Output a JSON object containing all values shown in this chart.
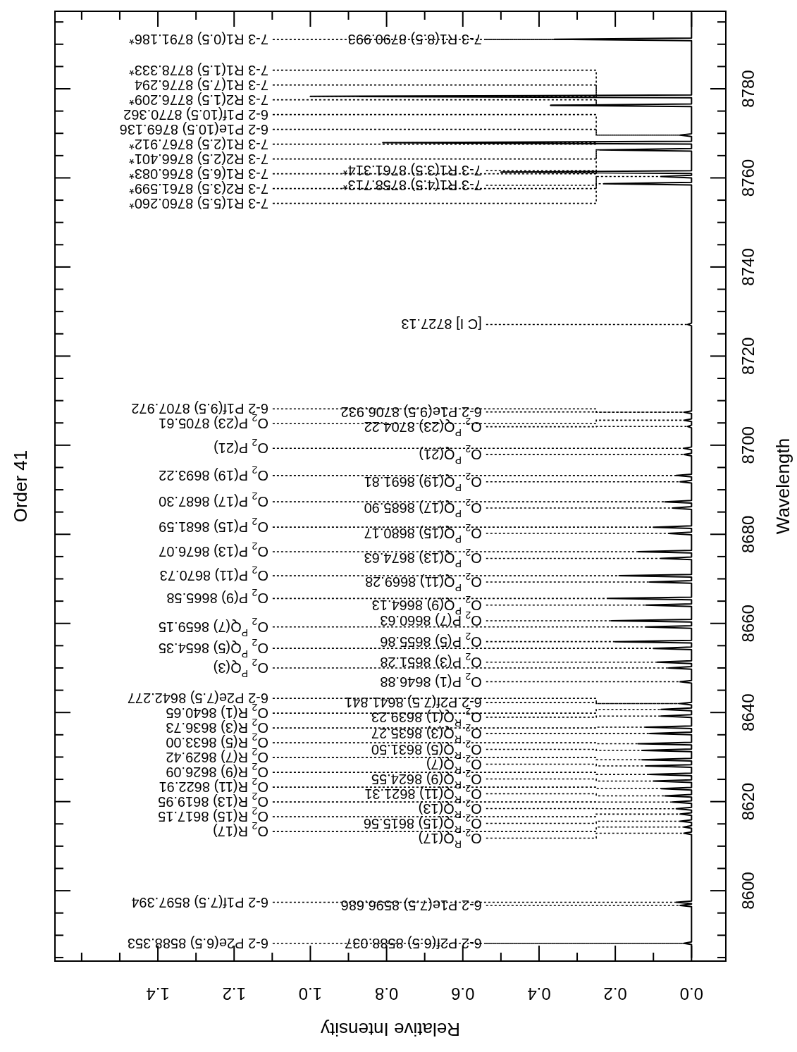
{
  "chart_data": {
    "type": "line",
    "title": "Order 41",
    "xlabel": "Relative Intensity",
    "ylabel": "Wavelength",
    "xlim": [
      1.67,
      -0.09
    ],
    "ylim": [
      8584.2,
      8797.4
    ],
    "xticks": [
      {
        "value": 0,
        "label": "0.0"
      },
      {
        "value": 0.1,
        "label": null
      },
      {
        "value": 0.2,
        "label": "0.2"
      },
      {
        "value": 0.3,
        "label": null
      },
      {
        "value": 0.4,
        "label": "0.4"
      },
      {
        "value": 0.5,
        "label": null
      },
      {
        "value": 0.6,
        "label": "0.6"
      },
      {
        "value": 0.7,
        "label": null
      },
      {
        "value": 0.8,
        "label": "0.8"
      },
      {
        "value": 0.9,
        "label": null
      },
      {
        "value": 1.0,
        "label": "1.0"
      },
      {
        "value": 1.1,
        "label": null
      },
      {
        "value": 1.2,
        "label": "1.2"
      },
      {
        "value": 1.3,
        "label": null
      },
      {
        "value": 1.4,
        "label": "1.4"
      },
      {
        "value": 1.5,
        "label": null
      },
      {
        "value": 1.6,
        "label": null
      }
    ],
    "yticks": [
      {
        "value": 8585,
        "label": null
      },
      {
        "value": 8590,
        "label": null
      },
      {
        "value": 8595,
        "label": null
      },
      8600,
      {
        "value": 8605,
        "label": null
      },
      {
        "value": 8610,
        "label": null
      },
      {
        "value": 8615,
        "label": null
      },
      8620,
      {
        "value": 8625,
        "label": null
      },
      {
        "value": 8630,
        "label": null
      },
      {
        "value": 8635,
        "label": null
      },
      8640,
      {
        "value": 8645,
        "label": null
      },
      {
        "value": 8650,
        "label": null
      },
      {
        "value": 8655,
        "label": null
      },
      8660,
      {
        "value": 8665,
        "label": null
      },
      {
        "value": 8670,
        "label": null
      },
      {
        "value": 8675,
        "label": null
      },
      8680,
      {
        "value": 8685,
        "label": null
      },
      {
        "value": 8690,
        "label": null
      },
      {
        "value": 8695,
        "label": null
      },
      8700,
      {
        "value": 8705,
        "label": null
      },
      {
        "value": 8710,
        "label": null
      },
      {
        "value": 8715,
        "label": null
      },
      8720,
      {
        "value": 8725,
        "label": null
      },
      {
        "value": 8730,
        "label": null
      },
      {
        "value": 8735,
        "label": null
      },
      8740,
      {
        "value": 8745,
        "label": null
      },
      {
        "value": 8750,
        "label": null
      },
      {
        "value": 8755,
        "label": null
      },
      8760,
      {
        "value": 8765,
        "label": null
      },
      {
        "value": 8770,
        "label": null
      },
      {
        "value": 8775,
        "label": null
      },
      8780,
      {
        "value": 8785,
        "label": null
      },
      {
        "value": 8790,
        "label": null
      },
      {
        "value": 8795,
        "label": null
      }
    ],
    "series": [
      {
        "color": "#000000",
        "values": [
          8585,
          8587.9,
          8588.2,
          8588.5,
          8596.4,
          8596.7,
          8597.0,
          8597.1,
          8597.4,
          8597.7,
          8612.6,
          8612.9,
          8613.2,
          8614.0,
          8614.3,
          8614.6,
          8615.3,
          8615.6,
          8615.9,
          8616.9,
          8617.2,
          8617.5,
          8618.1,
          8618.4,
          8618.7,
          8619.6,
          8619.9,
          8620.2,
          8621.0,
          8621.3,
          8621.6,
          8622.6,
          8622.9,
          8623.2,
          8624.3,
          8624.6,
          8624.9,
          8625.8,
          8626.1,
          8626.4,
          8627.7,
          8628.0,
          8628.3,
          8629.1,
          8629.4,
          8629.7,
          8631.2,
          8631.5,
          8631.8,
          8632.7,
          8633.0,
          8633.3,
          8635.0,
          8635.3,
          8635.6,
          8636.4,
          8636.7,
          8637.0,
          8638.9,
          8639.2,
          8639.5,
          8640.4,
          8640.7,
          8641.0,
          8641.7,
          8642.0,
          8642.3,
          8646.6,
          8646.9,
          8647.2,
          8649.7,
          8650.0,
          8650.3,
          8651.0,
          8651.3,
          8651.6,
          8654.1,
          8654.4,
          8654.7,
          8655.6,
          8655.9,
          8656.2,
          8658.9,
          8659.2,
          8659.5,
          8660.3,
          8660.6,
          8660.9,
          8663.8,
          8664.1,
          8664.4,
          8665.3,
          8665.6,
          8665.9,
          8669.0,
          8669.3,
          8669.6,
          8670.4,
          8670.7,
          8671.0,
          8674.3,
          8674.6,
          8674.9,
          8675.8,
          8676.1,
          8676.4,
          8679.9,
          8680.2,
          8680.5,
          8681.3,
          8681.6,
          8681.9,
          8685.6,
          8685.9,
          8686.2,
          8687.0,
          8687.3,
          8687.6,
          8691.5,
          8691.8,
          8692.1,
          8692.9,
          8693.2,
          8693.5,
          8697.6,
          8697.9,
          8698.2,
          8699.0,
          8699.3,
          8699.6,
          8703.9,
          8704.2,
          8704.5,
          8705.3,
          8705.6,
          8705.9,
          8707.1,
          8707.4,
          8707.7,
          8726.8,
          8727.1,
          8727.4,
          8758.4,
          8758.7,
          8759.0,
          8760.0,
          8760.3,
          8760.6,
          8761.0,
          8761.3,
          8761.6,
          8766.0,
          8766.3,
          8766.6,
          8767.6,
          8767.9,
          8768.2,
          8769.3,
          8769.6,
          8769.9,
          8776.0,
          8776.3,
          8776.6,
          8778.0,
          8778.3,
          8778.6,
          8790.8,
          8791.1,
          8791.4,
          8797.0
        ],
        "x": [
          0,
          0,
          0.02,
          0,
          0,
          0.03,
          0,
          0,
          0.04,
          0,
          0,
          0.02,
          0,
          0,
          0.02,
          0,
          0,
          0.03,
          0,
          0,
          0.03,
          0,
          0,
          0.04,
          0,
          0,
          0.05,
          0,
          0,
          0.07,
          0,
          0,
          0.08,
          0,
          0,
          0.1,
          0,
          0,
          0.11,
          0,
          0,
          0.12,
          0,
          0,
          0.13,
          0,
          0,
          0.13,
          0,
          0,
          0.14,
          0,
          0,
          0.11,
          0,
          0,
          0.12,
          0,
          0,
          0.08,
          0,
          0,
          0.08,
          0,
          0,
          0.03,
          0,
          0,
          0.03,
          0,
          0,
          0.06,
          0,
          0,
          0.09,
          0,
          0,
          0.1,
          0,
          0,
          0.2,
          0,
          0,
          0.12,
          0,
          0,
          0.21,
          0,
          0,
          0.12,
          0,
          0,
          0.22,
          0,
          0,
          0.11,
          0,
          0,
          0.19,
          0,
          0,
          0.08,
          0,
          0,
          0.14,
          0,
          0,
          0.06,
          0,
          0,
          0.1,
          0,
          0,
          0.05,
          0,
          0,
          0.07,
          0,
          0,
          0.03,
          0,
          0,
          0.04,
          0,
          0,
          0.02,
          0,
          0,
          0.02,
          0,
          0,
          0.01,
          0,
          0,
          0.02,
          0,
          0,
          0.02,
          0,
          0,
          0.01,
          0,
          0,
          0.23,
          0,
          0,
          0.08,
          0,
          0,
          0.5,
          0,
          0,
          0.24,
          0,
          0,
          0.81,
          0,
          0,
          0.03,
          0,
          0,
          0.37,
          0,
          0,
          1.0,
          0,
          0,
          0.36,
          0,
          0
        ]
      }
    ],
    "annotations": [
      {
        "text": "6-2 P2f(6.5) 8588.037",
        "x": 0.02,
        "y": 8588.2
      },
      {
        "text": "6-2 P2e(6.5) 8588.353",
        "x": 0.02,
        "y": 8588.2
      },
      {
        "text": "6-2 P1e(7.5) 8596.686",
        "x": 0.03,
        "y": 8596.7
      },
      {
        "text": "6-2 P1f(7.5) 8597.394",
        "x": 0.04,
        "y": 8597.4
      },
      {
        "text": "O$_{2}$ $^{R}$Q(17)",
        "x": 0.02,
        "y": 8612.9
      },
      {
        "text": "O$_{2}$ R(17)",
        "x": 0.02,
        "y": 8614.3
      },
      {
        "text": "O$_{2}$ $^{R}$Q(15) 8615.56",
        "x": 0.03,
        "y": 8615.6
      },
      {
        "text": "O$_{2}$ R(15) 8617.15",
        "x": 0.03,
        "y": 8617.2
      },
      {
        "text": "O$_{2}$ $^{R}$Q(13)",
        "x": 0.04,
        "y": 8618.4
      },
      {
        "text": "O$_{2}$ R(13) 8619.95",
        "x": 0.05,
        "y": 8619.9
      },
      {
        "text": "O$_{2}$ $^{R}$Q(11) 8621.31",
        "x": 0.07,
        "y": 8621.3
      },
      {
        "text": "O$_{2}$ R(11) 8622.91",
        "x": 0.08,
        "y": 8622.9
      },
      {
        "text": "O$_{2}$ $^{R}$Q(9) 8624.55",
        "x": 0.1,
        "y": 8624.6
      },
      {
        "text": "O$_{2}$ R(9) 8626.09",
        "x": 0.11,
        "y": 8626.1
      },
      {
        "text": "O$_{2}$ $^{R}$Q(7)",
        "x": 0.12,
        "y": 8628.0
      },
      {
        "text": "O$_{2}$ R(7) 8629.42",
        "x": 0.13,
        "y": 8629.4
      },
      {
        "text": "O$_{2}$ $^{R}$Q(5) 8631.50",
        "x": 0.13,
        "y": 8631.5
      },
      {
        "text": "O$_{2}$ R(5) 8633.00",
        "x": 0.14,
        "y": 8633.0
      },
      {
        "text": "O$_{2}$ $^{R}$Q(3) 8635.27",
        "x": 0.11,
        "y": 8635.3
      },
      {
        "text": "O$_{2}$ R(3) 8636.73",
        "x": 0.12,
        "y": 8636.7
      },
      {
        "text": "O$_{2}$ $^{R}$Q(1) 8639.23",
        "x": 0.08,
        "y": 8639.2
      },
      {
        "text": "O$_{2}$ R(1) 8640.65",
        "x": 0.08,
        "y": 8640.7
      },
      {
        "text": "6-2 P2f(7.5) 8641.841",
        "x": 0.03,
        "y": 8642.0
      },
      {
        "text": "6-2 P2e(7.5) 8642.277",
        "x": 0.03,
        "y": 8642.0
      },
      {
        "text": "O$_{2}$ P(1) 8646.88",
        "x": 0.03,
        "y": 8646.9
      },
      {
        "text": "O$_{2}$ $^{P}$Q(3)",
        "x": 0.06,
        "y": 8650.0
      },
      {
        "text": "O$_{2}$ P(3) 8651.28",
        "x": 0.09,
        "y": 8651.3
      },
      {
        "text": "O$_{2}$ $^{P}$Q(5) 8654.35",
        "x": 0.1,
        "y": 8654.4
      },
      {
        "text": "O$_{2}$ P(5) 8655.86",
        "x": 0.2,
        "y": 8655.9
      },
      {
        "text": "O$_{2}$ $^{P}$Q(7) 8659.15",
        "x": 0.12,
        "y": 8659.2
      },
      {
        "text": "O$_{2}$ P(7) 8660.63",
        "x": 0.21,
        "y": 8660.6
      },
      {
        "text": "O$_{2}$ $^{P}$Q(9) 8664.13",
        "x": 0.12,
        "y": 8664.1
      },
      {
        "text": "O$_{2}$ P(9) 8665.58",
        "x": 0.22,
        "y": 8665.6
      },
      {
        "text": "O$_{2}$ $^{P}$Q(11) 8669.28",
        "x": 0.11,
        "y": 8669.3
      },
      {
        "text": "O$_{2}$ P(11) 8670.73",
        "x": 0.19,
        "y": 8670.7
      },
      {
        "text": "O$_{2}$ $^{P}$Q(13) 8674.63",
        "x": 0.08,
        "y": 8674.6
      },
      {
        "text": "O$_{2}$ P(13) 8676.07",
        "x": 0.14,
        "y": 8676.1
      },
      {
        "text": "O$_{2}$ $^{P}$Q(15) 8680.17",
        "x": 0.06,
        "y": 8680.2
      },
      {
        "text": "O$_{2}$ P(15) 8681.59",
        "x": 0.1,
        "y": 8681.6
      },
      {
        "text": "O$_{2}$ $^{P}$Q(17) 8685.90",
        "x": 0.05,
        "y": 8685.9
      },
      {
        "text": "O$_{2}$ P(17) 8687.30",
        "x": 0.07,
        "y": 8687.3
      },
      {
        "text": "O$_{2}$ $^{P}$Q(19) 8691.81",
        "x": 0.03,
        "y": 8691.8
      },
      {
        "text": "O$_{2}$ P(19) 8693.22",
        "x": 0.04,
        "y": 8693.2
      },
      {
        "text": "O$_{2}$ $^{P}$Q(21)",
        "x": 0.02,
        "y": 8697.9
      },
      {
        "text": "O$_{2}$ P(21)",
        "x": 0.02,
        "y": 8699.3
      },
      {
        "text": "O$_{2}$ $^{P}$Q(23) 8704.22",
        "x": 0.01,
        "y": 8704.2
      },
      {
        "text": "O$_{2}$ P(23) 8705.61",
        "x": 0.02,
        "y": 8705.6
      },
      {
        "text": "6-2 P1e(9.5) 8706.932",
        "x": 0.02,
        "y": 8707.4
      },
      {
        "text": "6-2 P1f(9.5) 8707.972",
        "x": 0.02,
        "y": 8707.4
      },
      {
        "text": "[C I] 8727.13",
        "x": 0.01,
        "y": 8727.1
      },
      {
        "text": "7-3 R1(4.5) 8758.713*",
        "x": 0.23,
        "y": 8758.7
      },
      {
        "text": "7-3 R1(5.5) 8760.260*",
        "x": 0.08,
        "y": 8760.3
      },
      {
        "text": "7-3 R1(3.5) 8761.314*",
        "x": 0.5,
        "y": 8761.3
      },
      {
        "text": "7-3 R2(3.5) 8761.599*",
        "x": 0.5,
        "y": 8761.3
      },
      {
        "text": "7-3 R1(6.5) 8766.083*",
        "x": 0.24,
        "y": 8766.3
      },
      {
        "text": "7-3 R2(2.5) 8766.401*",
        "x": 0.24,
        "y": 8766.3
      },
      {
        "text": "7-3 R1(2.5) 8767.912*",
        "x": 0.81,
        "y": 8767.9
      },
      {
        "text": "6-2 P1e(10.5) 8769.136",
        "x": 0.03,
        "y": 8769.6
      },
      {
        "text": "6-2 P1f(10.5) 8770.362",
        "x": 0.03,
        "y": 8769.6
      },
      {
        "text": "7-3 R2(1.5) 8776.209*",
        "x": 0.37,
        "y": 8776.3
      },
      {
        "text": "7-3 R1(7.5) 8776.294",
        "x": 0.37,
        "y": 8776.3
      },
      {
        "text": "7-3 R1(1.5) 8778.333*",
        "x": 1.0,
        "y": 8778.3
      },
      {
        "text": "7-3 R1(8.5) 8790.993",
        "x": 0.36,
        "y": 8791.1
      },
      {
        "text": "7-3 R1(0.5) 8791.186*",
        "x": 0.36,
        "y": 8791.1
      }
    ]
  }
}
